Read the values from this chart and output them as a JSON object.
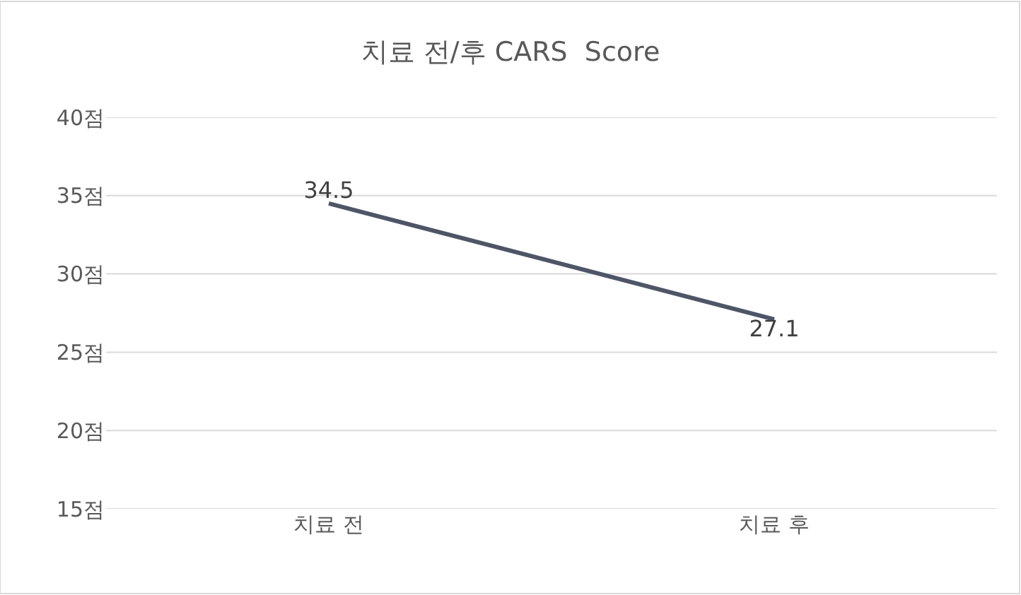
{
  "chart_data": {
    "type": "line",
    "title": "치료 전/후 CARS  Score",
    "categories": [
      "치료 전",
      "치료 후"
    ],
    "series": [
      {
        "color": "#4e5567",
        "values": [
          34.5,
          27.1
        ]
      }
    ],
    "ylim": [
      15,
      40
    ],
    "yticks": [
      {
        "value": 15,
        "label": "15점"
      },
      {
        "value": 20,
        "label": "20점"
      },
      {
        "value": 25,
        "label": "25점"
      },
      {
        "value": 30,
        "label": "30점"
      },
      {
        "value": 35,
        "label": "35점"
      },
      {
        "value": 40,
        "label": "40점"
      }
    ],
    "grid": "y",
    "marker": "none",
    "line_style": "solid",
    "data_labels": true
  }
}
